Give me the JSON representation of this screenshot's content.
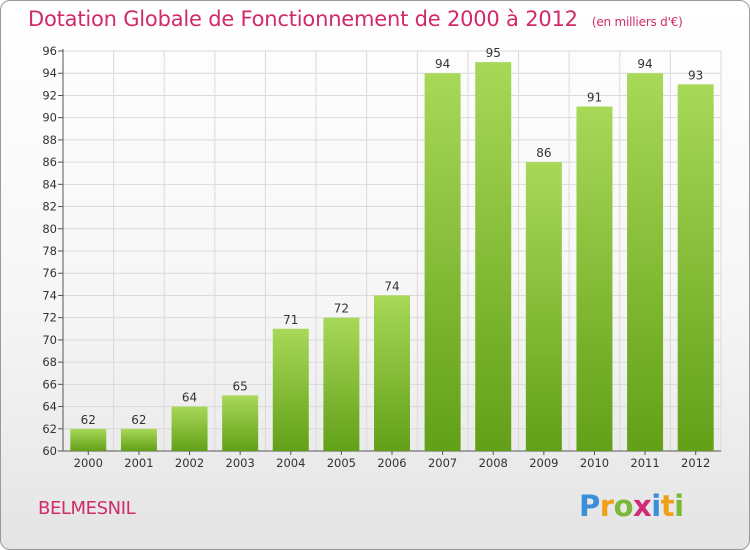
{
  "title": "Dotation Globale de Fonctionnement de 2000 à 2012",
  "unit_note": "(en milliers d'€)",
  "commune": "BELMESNIL",
  "logo": {
    "letters": [
      "P",
      "r",
      "o",
      "x",
      "i",
      "t",
      "i"
    ],
    "colors": [
      "#3a8fd8",
      "#f0a018",
      "#7ab838",
      "#d02a78",
      "#3a8fd8",
      "#f0a018",
      "#7ab838"
    ]
  },
  "colors": {
    "bar_light": "#a8d858",
    "bar_dark": "#62a018",
    "title": "#d12a6a"
  },
  "chart_data": {
    "type": "bar",
    "categories": [
      "2000",
      "2001",
      "2002",
      "2003",
      "2004",
      "2005",
      "2006",
      "2007",
      "2008",
      "2009",
      "2010",
      "2011",
      "2012"
    ],
    "values": [
      62,
      62,
      64,
      65,
      71,
      72,
      74,
      94,
      95,
      86,
      91,
      94,
      93
    ],
    "data_labels": [
      "62",
      "62",
      "64",
      "65",
      "71",
      "72",
      "74",
      "94",
      "95",
      "86",
      "91",
      "94",
      "93"
    ],
    "ylim": [
      60,
      96
    ],
    "yticks": [
      "60",
      "62",
      "64",
      "66",
      "68",
      "70",
      "72",
      "74",
      "76",
      "78",
      "80",
      "82",
      "84",
      "86",
      "88",
      "90",
      "92",
      "94",
      "96"
    ],
    "grid": true,
    "xlabel": "",
    "ylabel": ""
  }
}
